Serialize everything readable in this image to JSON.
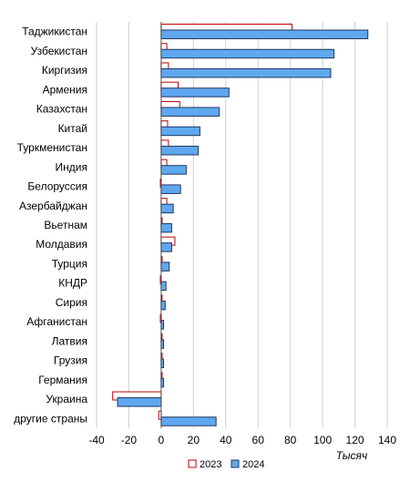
{
  "chart_data": {
    "type": "bar",
    "orientation": "horizontal",
    "categories": [
      "Таджикистан",
      "Узбекистан",
      "Киргизия",
      "Армения",
      "Казахстан",
      "Китай",
      "Туркменистан",
      "Индия",
      "Белоруссия",
      "Азербайджан",
      "Вьетнам",
      "Молдавия",
      "Турция",
      "КНДР",
      "Сирия",
      "Афганистан",
      "Латвия",
      "Грузия",
      "Германия",
      "Украина",
      "другие страны"
    ],
    "series": [
      {
        "name": "2023",
        "color": "#c00000",
        "fill": "#ffffff",
        "values": [
          81,
          3.5,
          4.5,
          10.5,
          11.5,
          4,
          4.5,
          3.5,
          -0.5,
          3.5,
          0.5,
          8.5,
          0.5,
          -0.5,
          0.5,
          -0.5,
          0.5,
          0.5,
          0.5,
          -30,
          -1.5
        ]
      },
      {
        "name": "2024",
        "color": "#1f3864",
        "fill": "#5fa8ef",
        "values": [
          128,
          107,
          105,
          42,
          36,
          24,
          23,
          15.5,
          12,
          7.5,
          6.5,
          6.5,
          5,
          3,
          2.5,
          1.5,
          1.5,
          1.5,
          1.5,
          -27,
          34
        ]
      }
    ],
    "xlim": [
      -40,
      140
    ],
    "xticks": [
      -40,
      -20,
      0,
      20,
      40,
      60,
      80,
      100,
      120,
      140
    ],
    "xlabel": "Тысяч",
    "grid": true,
    "legend_position": "bottom"
  }
}
